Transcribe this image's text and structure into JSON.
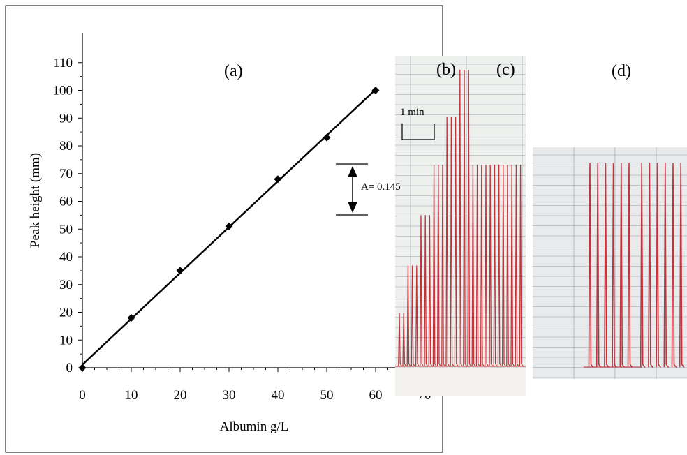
{
  "chart_data": {
    "type": "scatter",
    "title": "",
    "xlabel": "Albumin g/L",
    "ylabel": "Peak height  (mm)",
    "xlim": [
      0,
      70
    ],
    "ylim": [
      0,
      110
    ],
    "x_ticks": [
      "0",
      "10",
      "20",
      "30",
      "40",
      "50",
      "60",
      "70"
    ],
    "y_ticks": [
      "0",
      "10",
      "20",
      "30",
      "40",
      "50",
      "60",
      "70",
      "80",
      "90",
      "100",
      "110"
    ],
    "grid": false,
    "series": [
      {
        "x": [
          0,
          10,
          20,
          30,
          40,
          50,
          60
        ],
        "y": [
          0,
          18,
          35,
          51,
          68,
          83,
          100
        ],
        "marker": "diamond",
        "line": "linear-fit",
        "color": "#000000"
      }
    ],
    "annotations": {
      "panel_a": "(a)",
      "panel_b": "(b)",
      "panel_c": "(c)",
      "panel_d": "(d)",
      "absorbance": "A= 0.145",
      "time_scale": "1 min"
    },
    "recorder_colors": {
      "trace": "#c0343c",
      "paper": "#eef0ee",
      "grid": "#8a96a2"
    },
    "recorder_b_c_peaks": [
      18,
      18,
      34,
      34,
      34,
      51,
      51,
      51,
      68,
      68,
      68,
      84,
      84,
      84,
      100,
      100,
      100,
      68,
      68,
      68,
      68,
      68,
      68,
      68,
      68,
      68,
      68,
      68,
      68
    ],
    "recorder_d_peaks": [
      68,
      68,
      68,
      68,
      68,
      68,
      68,
      68,
      68,
      68,
      68,
      68
    ]
  }
}
